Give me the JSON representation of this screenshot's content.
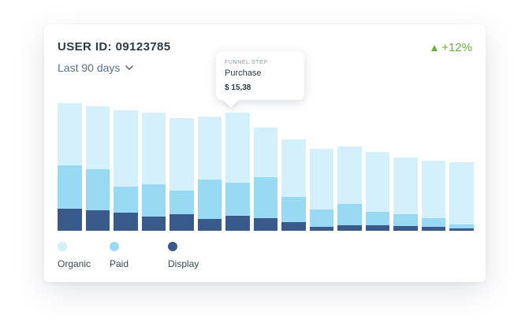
{
  "header": {
    "user_id": "USER ID: 09123785",
    "period": "Last 90 days",
    "change": "+12%"
  },
  "tooltip": {
    "label": "FUNNEL STEP",
    "name": "Purchase",
    "value": "$ 15,38"
  },
  "colors": {
    "organic": "#d3f0fc",
    "paid": "#98daf4",
    "display": "#3a5a8c",
    "positive": "#6cae3b"
  },
  "legend": [
    {
      "label": "Organic",
      "color": "#d3f0fc"
    },
    {
      "label": "Paid",
      "color": "#98daf4"
    },
    {
      "label": "Display",
      "color": "#3a5a8c"
    }
  ],
  "chart_data": {
    "type": "bar",
    "stacked": true,
    "categories": [
      "",
      "",
      "",
      "",
      "",
      "",
      "",
      "",
      "",
      "",
      "",
      "",
      "",
      "",
      ""
    ],
    "series": [
      {
        "name": "Display",
        "values": [
          28,
          26,
          23,
          18,
          21,
          15,
          19,
          16,
          11,
          5,
          7,
          7,
          6,
          5,
          3
        ]
      },
      {
        "name": "Paid",
        "values": [
          56,
          53,
          34,
          42,
          31,
          51,
          43,
          53,
          33,
          22,
          27,
          17,
          15,
          11,
          5
        ]
      },
      {
        "name": "Organic",
        "values": [
          80,
          81,
          98,
          92,
          93,
          81,
          90,
          64,
          73,
          78,
          74,
          77,
          73,
          74,
          80
        ]
      }
    ],
    "ylim": [
      0,
      170
    ],
    "grid": false,
    "legend_position": "bottom-left"
  }
}
